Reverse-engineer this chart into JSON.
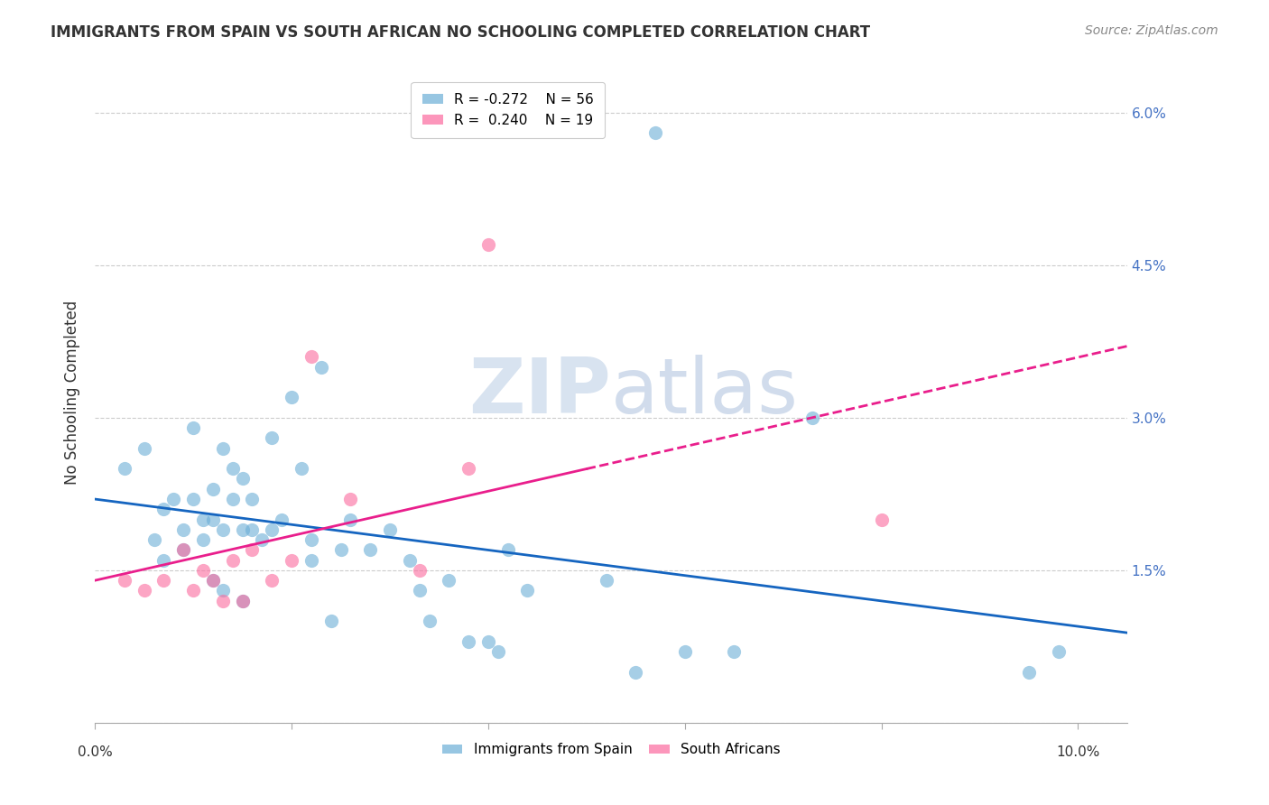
{
  "title": "IMMIGRANTS FROM SPAIN VS SOUTH AFRICAN NO SCHOOLING COMPLETED CORRELATION CHART",
  "source": "Source: ZipAtlas.com",
  "ylabel": "No Schooling Completed",
  "ylim": [
    0.0,
    0.065
  ],
  "xlim": [
    0.0,
    0.105
  ],
  "blue_color": "#6baed6",
  "pink_color": "#fb6a9e",
  "blue_line_color": "#1565c0",
  "pink_line_color": "#e91e8c",
  "legend_blue_r": "-0.272",
  "legend_blue_n": "56",
  "legend_pink_r": "0.240",
  "legend_pink_n": "19",
  "watermark_zip": "ZIP",
  "watermark_atlas": "atlas",
  "spain_x": [
    0.003,
    0.005,
    0.006,
    0.007,
    0.007,
    0.008,
    0.009,
    0.009,
    0.01,
    0.01,
    0.011,
    0.011,
    0.012,
    0.012,
    0.012,
    0.013,
    0.013,
    0.013,
    0.014,
    0.014,
    0.015,
    0.015,
    0.015,
    0.016,
    0.016,
    0.017,
    0.018,
    0.018,
    0.019,
    0.02,
    0.021,
    0.022,
    0.022,
    0.023,
    0.024,
    0.025,
    0.026,
    0.028,
    0.03,
    0.032,
    0.033,
    0.034,
    0.036,
    0.038,
    0.04,
    0.041,
    0.042,
    0.044,
    0.052,
    0.055,
    0.057,
    0.06,
    0.065,
    0.073,
    0.095,
    0.098
  ],
  "spain_y": [
    0.025,
    0.027,
    0.018,
    0.021,
    0.016,
    0.022,
    0.019,
    0.017,
    0.022,
    0.029,
    0.018,
    0.02,
    0.023,
    0.02,
    0.014,
    0.027,
    0.019,
    0.013,
    0.022,
    0.025,
    0.024,
    0.019,
    0.012,
    0.019,
    0.022,
    0.018,
    0.028,
    0.019,
    0.02,
    0.032,
    0.025,
    0.018,
    0.016,
    0.035,
    0.01,
    0.017,
    0.02,
    0.017,
    0.019,
    0.016,
    0.013,
    0.01,
    0.014,
    0.008,
    0.008,
    0.007,
    0.017,
    0.013,
    0.014,
    0.005,
    0.058,
    0.007,
    0.007,
    0.03,
    0.005,
    0.007
  ],
  "sa_x": [
    0.003,
    0.005,
    0.007,
    0.009,
    0.01,
    0.011,
    0.012,
    0.013,
    0.014,
    0.015,
    0.016,
    0.018,
    0.02,
    0.022,
    0.026,
    0.033,
    0.038,
    0.04,
    0.08
  ],
  "sa_y": [
    0.014,
    0.013,
    0.014,
    0.017,
    0.013,
    0.015,
    0.014,
    0.012,
    0.016,
    0.012,
    0.017,
    0.014,
    0.016,
    0.036,
    0.022,
    0.015,
    0.025,
    0.047,
    0.02
  ]
}
